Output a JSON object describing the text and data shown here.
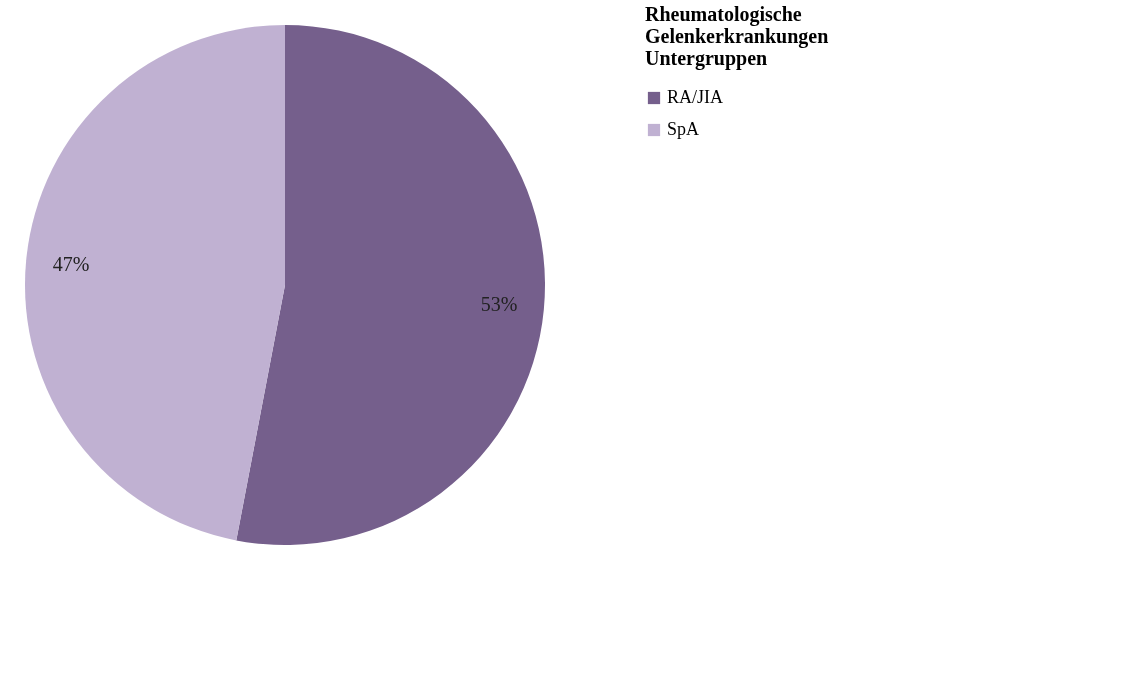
{
  "chart_data": {
    "type": "pie",
    "legend_title": "Rheumatologische Gelenkerkrankungen Untergruppen",
    "categories": [
      "RA/JIA",
      "SpA"
    ],
    "values": [
      53,
      47
    ],
    "colors": [
      "#755f8c",
      "#c0b1d2"
    ],
    "value_labels": [
      "53%",
      "47%"
    ],
    "legend": "right"
  }
}
